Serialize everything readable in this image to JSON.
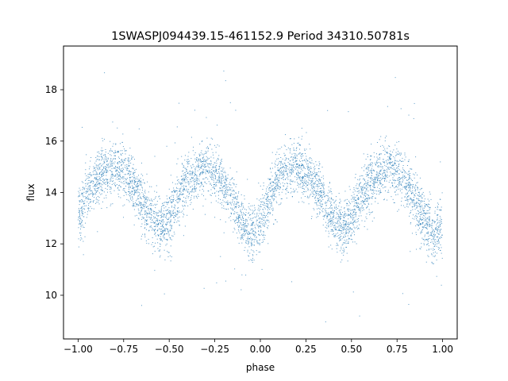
{
  "chart_data": {
    "type": "scatter",
    "title": "1SWASPJ094439.15-461152.9 Period 34310.50781s",
    "xlabel": "phase",
    "ylabel": "flux",
    "xlim": [
      -1.08,
      1.08
    ],
    "ylim": [
      8.3,
      19.7
    ],
    "xticks": [
      -1.0,
      -0.75,
      -0.5,
      -0.25,
      0.0,
      0.25,
      0.5,
      0.75,
      1.0
    ],
    "xtick_labels": [
      "−1.00",
      "−0.75",
      "−0.50",
      "−0.25",
      "0.00",
      "0.25",
      "0.50",
      "0.75",
      "1.00"
    ],
    "yticks": [
      10,
      12,
      14,
      16,
      18
    ],
    "ytick_labels": [
      "10",
      "12",
      "14",
      "16",
      "18"
    ],
    "grid": false,
    "legend": "none",
    "point_color": "#1f77b4",
    "series": [
      {
        "x": [
          -1.0,
          -0.95,
          -0.9,
          -0.85,
          -0.8,
          -0.75,
          -0.7,
          -0.65,
          -0.6,
          -0.55,
          -0.5,
          -0.45,
          -0.4,
          -0.35,
          -0.3,
          -0.25,
          -0.2,
          -0.15,
          -0.1,
          -0.05,
          0.0,
          0.05,
          0.1,
          0.15,
          0.2,
          0.25,
          0.3,
          0.35,
          0.4,
          0.45,
          0.5,
          0.55,
          0.6,
          0.65,
          0.7,
          0.75,
          0.8,
          0.85,
          0.9,
          0.95,
          1.0
        ],
        "y": [
          13.0,
          13.9,
          14.5,
          14.8,
          15.0,
          14.8,
          14.3,
          13.7,
          13.0,
          12.6,
          13.0,
          13.8,
          14.4,
          14.8,
          15.0,
          14.8,
          14.3,
          13.6,
          13.0,
          12.3,
          12.8,
          13.8,
          14.5,
          14.9,
          15.0,
          14.8,
          14.3,
          13.7,
          13.0,
          12.6,
          13.0,
          13.8,
          14.4,
          14.8,
          15.0,
          14.8,
          14.3,
          13.6,
          13.0,
          12.3,
          12.6
        ],
        "scatter_width": 0.55
      }
    ]
  }
}
